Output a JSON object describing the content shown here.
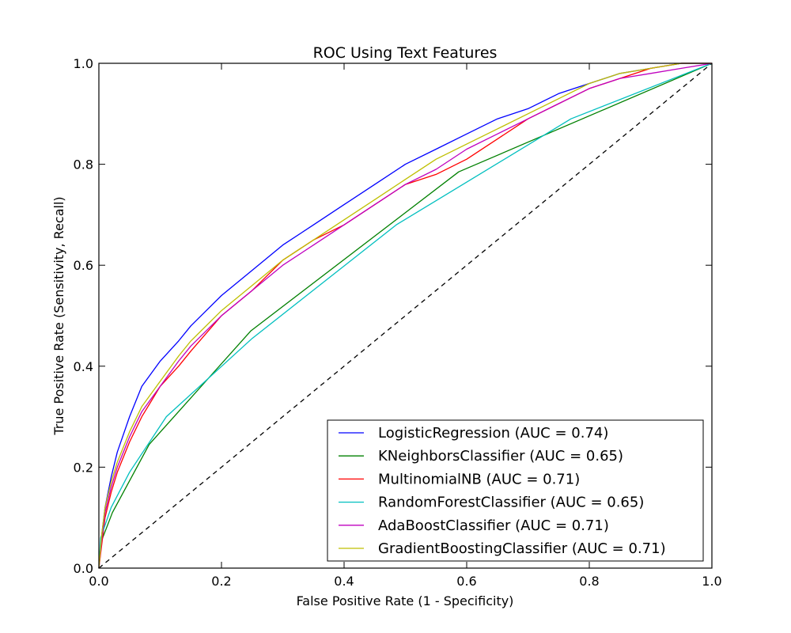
{
  "chart_data": {
    "type": "line",
    "title": "ROC Using Text Features",
    "xlabel": "False Positive Rate (1 - Specificity)",
    "ylabel": "True Positive Rate (Sensitivity, Recall)",
    "xlim": [
      0.0,
      1.0
    ],
    "ylim": [
      0.0,
      1.0
    ],
    "xticks": [
      "0.0",
      "0.2",
      "0.4",
      "0.6",
      "0.8",
      "1.0"
    ],
    "yticks": [
      "0.0",
      "0.2",
      "0.4",
      "0.6",
      "0.8",
      "1.0"
    ],
    "grid": false,
    "legend_position": "lower-right",
    "reference_line": {
      "x": [
        0,
        1
      ],
      "y": [
        0,
        1
      ],
      "style": "dashed",
      "color": "#000000"
    },
    "series": [
      {
        "name": "LogisticRegression (AUC = 0.74)",
        "color": "#0000ff",
        "x": [
          0,
          0.005,
          0.01,
          0.02,
          0.03,
          0.05,
          0.07,
          0.1,
          0.13,
          0.15,
          0.2,
          0.25,
          0.3,
          0.35,
          0.4,
          0.45,
          0.5,
          0.55,
          0.6,
          0.65,
          0.7,
          0.75,
          0.8,
          0.85,
          0.9,
          0.95,
          1.0
        ],
        "y": [
          0,
          0.07,
          0.12,
          0.18,
          0.23,
          0.3,
          0.36,
          0.41,
          0.45,
          0.48,
          0.54,
          0.59,
          0.64,
          0.68,
          0.72,
          0.76,
          0.8,
          0.83,
          0.86,
          0.89,
          0.91,
          0.94,
          0.96,
          0.98,
          0.99,
          1.0,
          1.0
        ]
      },
      {
        "name": "KNeighborsClassifier (AUC = 0.65)",
        "color": "#008000",
        "x": [
          0,
          0.003,
          0.022,
          0.082,
          0.248,
          0.587,
          1.0
        ],
        "y": [
          0,
          0.05,
          0.11,
          0.245,
          0.47,
          0.785,
          1.0
        ]
      },
      {
        "name": "MultinomialNB (AUC = 0.71)",
        "color": "#ff0000",
        "x": [
          0,
          0.005,
          0.01,
          0.02,
          0.03,
          0.05,
          0.07,
          0.1,
          0.13,
          0.15,
          0.2,
          0.25,
          0.3,
          0.35,
          0.4,
          0.45,
          0.5,
          0.55,
          0.6,
          0.65,
          0.7,
          0.75,
          0.8,
          0.85,
          0.9,
          0.95,
          1.0
        ],
        "y": [
          0,
          0.05,
          0.1,
          0.15,
          0.19,
          0.25,
          0.3,
          0.36,
          0.4,
          0.43,
          0.5,
          0.55,
          0.61,
          0.65,
          0.68,
          0.72,
          0.76,
          0.78,
          0.81,
          0.85,
          0.89,
          0.92,
          0.95,
          0.97,
          0.99,
          1.0,
          1.0
        ]
      },
      {
        "name": "RandomForestClassifier (AUC = 0.65)",
        "color": "#00bfbf",
        "x": [
          0,
          0.003,
          0.02,
          0.05,
          0.11,
          0.25,
          0.485,
          0.77,
          1.0
        ],
        "y": [
          0,
          0.06,
          0.12,
          0.19,
          0.3,
          0.455,
          0.68,
          0.89,
          1.0
        ]
      },
      {
        "name": "AdaBoostClassifier (AUC = 0.71)",
        "color": "#bf00bf",
        "x": [
          0,
          0.005,
          0.01,
          0.02,
          0.03,
          0.05,
          0.07,
          0.1,
          0.13,
          0.15,
          0.2,
          0.25,
          0.3,
          0.35,
          0.4,
          0.45,
          0.5,
          0.55,
          0.6,
          0.65,
          0.7,
          0.75,
          0.8,
          0.85,
          0.9,
          0.95,
          1.0
        ],
        "y": [
          0,
          0.06,
          0.11,
          0.16,
          0.2,
          0.26,
          0.31,
          0.36,
          0.41,
          0.44,
          0.5,
          0.55,
          0.6,
          0.64,
          0.68,
          0.72,
          0.76,
          0.79,
          0.83,
          0.86,
          0.89,
          0.92,
          0.95,
          0.97,
          0.98,
          0.99,
          1.0
        ]
      },
      {
        "name": "GradientBoostingClassifier (AUC = 0.71)",
        "color": "#bfbf00",
        "x": [
          0,
          0.005,
          0.01,
          0.02,
          0.03,
          0.05,
          0.07,
          0.1,
          0.13,
          0.15,
          0.2,
          0.25,
          0.3,
          0.35,
          0.4,
          0.45,
          0.5,
          0.55,
          0.6,
          0.65,
          0.7,
          0.75,
          0.8,
          0.85,
          0.9,
          0.95,
          1.0
        ],
        "y": [
          0,
          0.07,
          0.12,
          0.17,
          0.21,
          0.27,
          0.32,
          0.37,
          0.42,
          0.45,
          0.51,
          0.56,
          0.61,
          0.65,
          0.69,
          0.73,
          0.77,
          0.81,
          0.84,
          0.87,
          0.9,
          0.93,
          0.96,
          0.98,
          0.99,
          1.0,
          1.0
        ]
      }
    ]
  }
}
